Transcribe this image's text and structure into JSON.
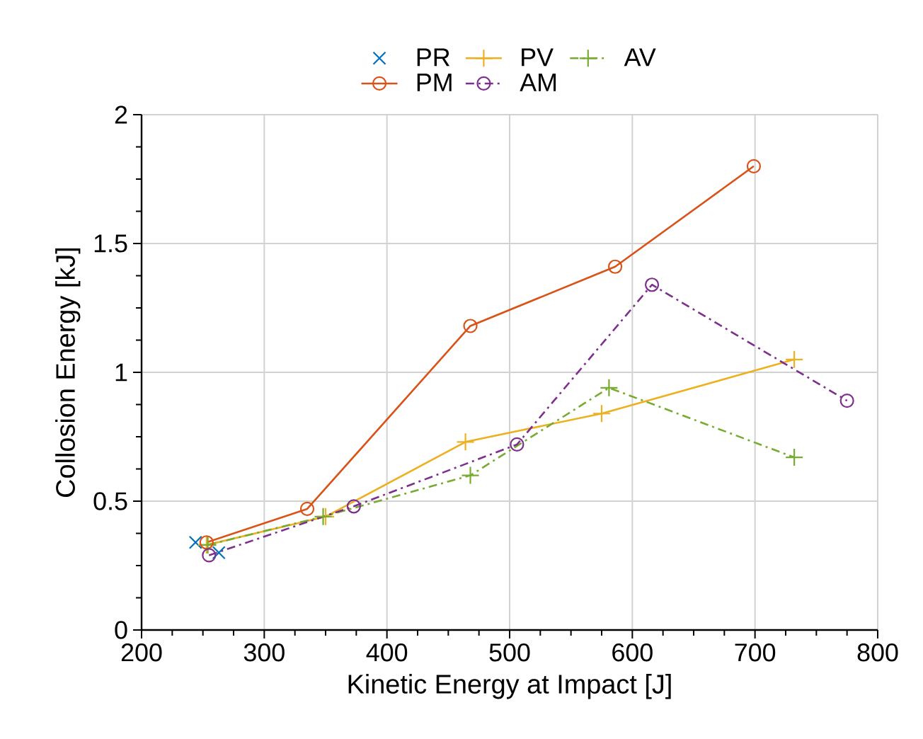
{
  "chart_data": {
    "type": "line",
    "xlabel": "Kinetic Energy at Impact [J]",
    "ylabel": "Collosion Energy [kJ]",
    "xlim": [
      200,
      800
    ],
    "xticks": [
      200,
      300,
      400,
      500,
      600,
      700,
      800
    ],
    "ylim": [
      0,
      2
    ],
    "yticks": [
      0,
      0.5,
      1,
      1.5,
      2
    ],
    "grid": true,
    "legend": "top",
    "series": [
      {
        "name": "PR",
        "type": "scatter",
        "marker": "cross",
        "color": "#0072bd",
        "x": [
          244,
          263
        ],
        "values": [
          0.34,
          0.3
        ]
      },
      {
        "name": "PV",
        "marker": "plus",
        "line_style": "solid",
        "color": "#edb120",
        "x": [
          253,
          350,
          464,
          575,
          732
        ],
        "values": [
          0.33,
          0.44,
          0.73,
          0.84,
          1.05
        ]
      },
      {
        "name": "AV",
        "marker": "plus",
        "line_style": "dashdot",
        "color": "#77ac30",
        "x": [
          254,
          348,
          468,
          581,
          732
        ],
        "values": [
          0.33,
          0.44,
          0.6,
          0.94,
          0.67
        ]
      },
      {
        "name": "PM",
        "marker": "circle",
        "line_style": "solid",
        "color": "#d95319",
        "x": [
          253,
          335,
          468,
          586,
          699
        ],
        "values": [
          0.34,
          0.47,
          1.18,
          1.41,
          1.8
        ]
      },
      {
        "name": "AM",
        "marker": "circle",
        "line_style": "dashdot",
        "color": "#7e2f8e",
        "x": [
          255,
          373,
          506,
          616,
          775
        ],
        "values": [
          0.29,
          0.48,
          0.72,
          1.34,
          0.89
        ]
      }
    ]
  }
}
